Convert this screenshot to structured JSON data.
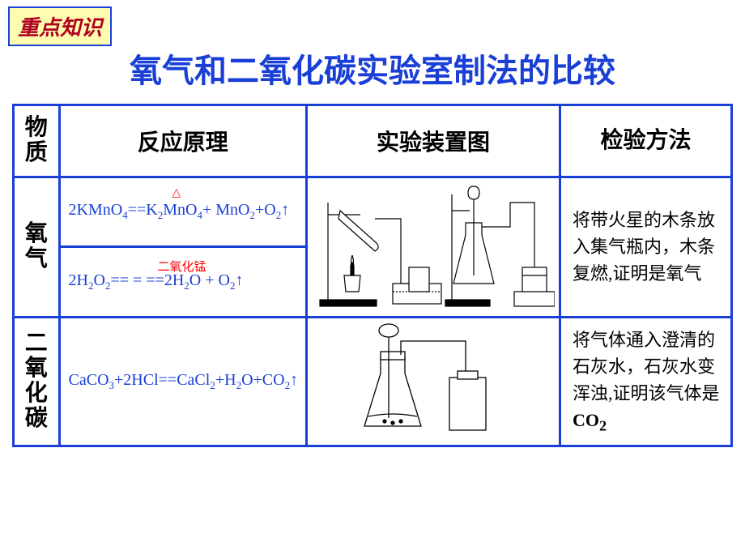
{
  "badge": "重点知识",
  "title": "氧气和二氧化碳实验室制法的比较",
  "headers": {
    "substance": "物质",
    "principle": "反应原理",
    "apparatus": "实验装置图",
    "test": "检验方法"
  },
  "rows": {
    "o2": {
      "name": "氧气",
      "eq1": {
        "annot": "△",
        "formula_html": "2KMnO<sub>4</sub>==K<sub>2</sub>MnO<sub>4</sub>+ MnO<sub>2</sub>+O<sub>2</sub>↑"
      },
      "eq2": {
        "annot": "二氧化锰",
        "formula_html": "2H<sub>2</sub>O<sub>2</sub>== = ==2H<sub>2</sub>O  +  O<sub>2</sub>↑"
      },
      "test": "将带火星的木条放入集气瓶内，木条复燃,证明是氧气"
    },
    "co2": {
      "name": "二氧化碳",
      "eq": {
        "formula_html": "CaCO<sub>3</sub>+2HCl==CaCl<sub>2</sub>+H<sub>2</sub>O+CO<sub>2</sub>↑"
      },
      "test_prefix": "将气体通入澄清的石灰水，石灰水变浑浊,证明该气体是",
      "test_bold": "CO",
      "test_sub": "2"
    }
  },
  "colors": {
    "border": "#1a3fd6",
    "title": "#1a3fd6",
    "badge_bg": "#fdfdb0",
    "badge_text": "#b00020",
    "annot": "#ff0000"
  }
}
